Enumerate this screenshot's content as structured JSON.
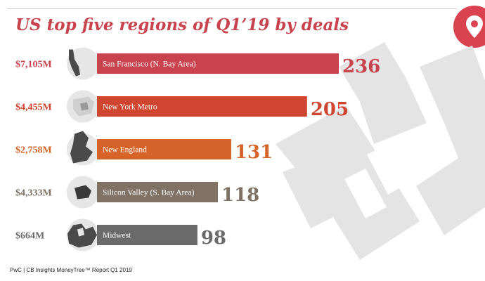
{
  "title": "US top five regions of Q1’19 by deals",
  "footer": "PwC | CB Insights MoneyTree™ Report Q1 2019",
  "icons": {
    "pin": "location-pin-icon",
    "handshake": "handshake-icon",
    "region_maps": [
      "california-map-icon",
      "new-york-map-icon",
      "new-england-map-icon",
      "silicon-valley-map-icon",
      "midwest-map-icon"
    ]
  },
  "colors": {
    "title": "#c8434e",
    "pin_badge": "#d9434f",
    "handshake": "#e4e4e4"
  },
  "chart_data": {
    "type": "bar",
    "orientation": "horizontal",
    "categories": [
      "San Francisco (N. Bay Area)",
      "New York Metro",
      "New England",
      "Silicon Valley (S. Bay Area)",
      "Midwest"
    ],
    "values": [
      236,
      205,
      131,
      118,
      98
    ],
    "amounts": [
      "$7,105M",
      "$4,455M",
      "$2,758M",
      "$4,333M",
      "$664M"
    ],
    "bar_colors": [
      "#c8434e",
      "#d04530",
      "#d6642a",
      "#7f7265",
      "#6b6b6b"
    ],
    "amount_colors": [
      "#c8434e",
      "#d04530",
      "#d6642a",
      "#7f7265",
      "#6b6b6b"
    ],
    "count_colors": [
      "#c8434e",
      "#d04530",
      "#d6642a",
      "#7f7265",
      "#6b6b6b"
    ],
    "xlim": [
      0,
      236
    ]
  }
}
